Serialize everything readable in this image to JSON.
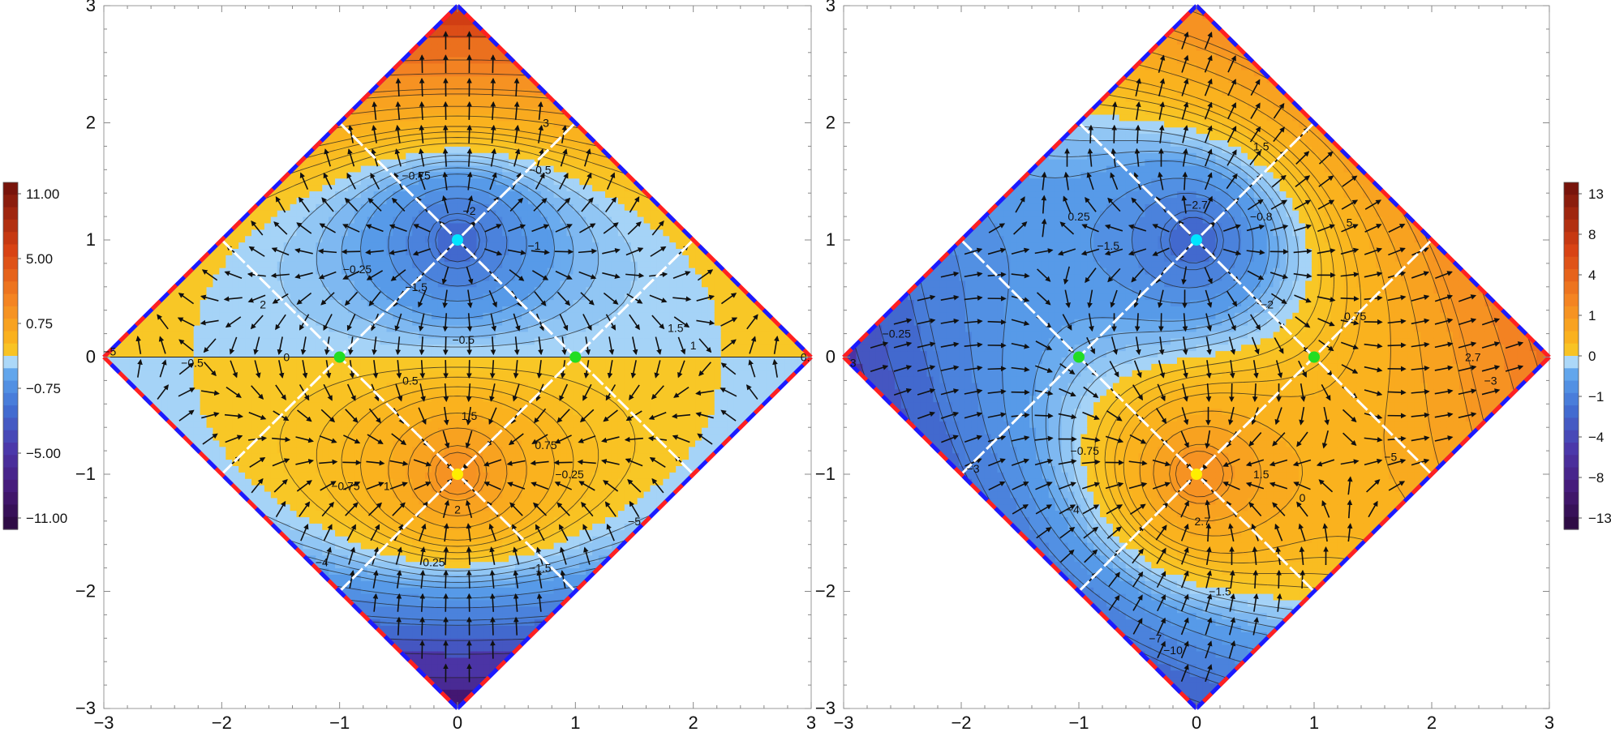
{
  "chart_data": [
    {
      "type": "heatmap",
      "title": "",
      "xlabel": "",
      "ylabel": "",
      "xlim": [
        -3,
        3
      ],
      "ylim": [
        -3,
        3
      ],
      "grid": false,
      "x_ticks": [
        "−3",
        "−2",
        "−1",
        "0",
        "1",
        "2",
        "3"
      ],
      "y_ticks": [
        "3",
        "2",
        "1",
        "0",
        "−1",
        "−2",
        "−3"
      ],
      "x_tick_values": [
        -3,
        -2,
        -1,
        0,
        1,
        2,
        3
      ],
      "y_tick_values": [
        3,
        2,
        1,
        0,
        -1,
        -2,
        -3
      ],
      "domain": "|x| + |y| ≤ 3",
      "field": "y",
      "colorbar": {
        "position": "left",
        "labels": [
          "11.00",
          "5.00",
          "0.75",
          "−0.75",
          "−5.00",
          "−11.00"
        ],
        "label_values": [
          11,
          5,
          0.75,
          -0.75,
          -5,
          -11
        ],
        "min": -13,
        "max": 13
      },
      "points": [
        {
          "x": 0,
          "y": 1,
          "color": "#00e5ff"
        },
        {
          "x": 0,
          "y": -1,
          "color": "#ffee00"
        },
        {
          "x": -1,
          "y": 0,
          "color": "#22dd22"
        },
        {
          "x": 1,
          "y": 0,
          "color": "#22dd22"
        }
      ],
      "contour_labels": [
        {
          "text": "3",
          "x": 0.75,
          "y": 2.0
        },
        {
          "text": "−0.75",
          "x": -0.35,
          "y": 1.55
        },
        {
          "text": "−0.5",
          "x": 0.7,
          "y": 1.6
        },
        {
          "text": "−2",
          "x": 0.1,
          "y": 1.25
        },
        {
          "text": "−1",
          "x": 0.65,
          "y": 0.95
        },
        {
          "text": "−0.25",
          "x": -0.85,
          "y": 0.75
        },
        {
          "text": "−1.5",
          "x": -0.35,
          "y": 0.6
        },
        {
          "text": "2",
          "x": -1.65,
          "y": 0.45
        },
        {
          "text": "1.5",
          "x": 1.85,
          "y": 0.25
        },
        {
          "text": "−0.5",
          "x": 0.05,
          "y": 0.15
        },
        {
          "text": "1",
          "x": 2.0,
          "y": 0.1
        },
        {
          "text": "−5",
          "x": -2.95,
          "y": 0.05
        },
        {
          "text": "−0.5",
          "x": -2.25,
          "y": -0.05
        },
        {
          "text": "0",
          "x": -1.45,
          "y": 0.0
        },
        {
          "text": "0.",
          "x": 2.95,
          "y": 0.0
        },
        {
          "text": "0.5",
          "x": -0.4,
          "y": -0.2
        },
        {
          "text": "1.5",
          "x": 0.1,
          "y": -0.5
        },
        {
          "text": "0.75",
          "x": 0.75,
          "y": -0.75
        },
        {
          "text": "−0.25",
          "x": 0.95,
          "y": -1.0
        },
        {
          "text": "−0.75",
          "x": -0.95,
          "y": -1.1
        },
        {
          "text": "1",
          "x": -0.6,
          "y": -1.1
        },
        {
          "text": "2",
          "x": 0.0,
          "y": -1.3
        },
        {
          "text": "−5",
          "x": 1.5,
          "y": -1.4
        },
        {
          "text": "0.25",
          "x": -0.2,
          "y": -1.75
        },
        {
          "text": "−1.5",
          "x": 0.7,
          "y": -1.8
        },
        {
          "text": "−4",
          "x": -1.15,
          "y": -1.75
        }
      ]
    },
    {
      "type": "heatmap",
      "title": "",
      "xlabel": "",
      "ylabel": "",
      "xlim": [
        -3,
        3
      ],
      "ylim": [
        -3,
        3
      ],
      "grid": false,
      "x_ticks": [
        "−3",
        "−2",
        "−1",
        "0",
        "1",
        "2",
        "3"
      ],
      "y_ticks": [
        "3",
        "2",
        "1",
        "0",
        "−1",
        "−2",
        "−3"
      ],
      "x_tick_values": [
        -3,
        -2,
        -1,
        0,
        1,
        2,
        3
      ],
      "y_tick_values": [
        3,
        2,
        1,
        0,
        -1,
        -2,
        -3
      ],
      "domain": "|x| + |y| ≤ 3",
      "field": "x + y",
      "colorbar": {
        "position": "right",
        "labels": [
          "13",
          "8",
          "4",
          "1",
          "0",
          "−1",
          "−4",
          "−8",
          "−13"
        ],
        "label_values": [
          13,
          8,
          4,
          1,
          0,
          -1,
          -4,
          -8,
          -13
        ],
        "min": -13,
        "max": 13
      },
      "points": [
        {
          "x": 0,
          "y": 1,
          "color": "#00e5ff"
        },
        {
          "x": 0,
          "y": -1,
          "color": "#ffee00"
        },
        {
          "x": -1,
          "y": 0,
          "color": "#22dd22"
        },
        {
          "x": 1,
          "y": 0,
          "color": "#22dd22"
        }
      ],
      "contour_labels": [
        {
          "text": "1.5",
          "x": 0.55,
          "y": 1.8
        },
        {
          "text": "5",
          "x": 1.3,
          "y": 1.15
        },
        {
          "text": "−2.7",
          "x": 0.0,
          "y": 1.3
        },
        {
          "text": "0.25",
          "x": -1.0,
          "y": 1.2
        },
        {
          "text": "−0.8",
          "x": 0.55,
          "y": 1.2
        },
        {
          "text": "−1.5",
          "x": -0.75,
          "y": 0.95
        },
        {
          "text": "−2",
          "x": 0.6,
          "y": 0.45
        },
        {
          "text": "0.75",
          "x": 1.35,
          "y": 0.35
        },
        {
          "text": "−0.25",
          "x": -2.55,
          "y": 0.2
        },
        {
          "text": "2.7",
          "x": 2.35,
          "y": 0.0
        },
        {
          "text": "−3",
          "x": 2.5,
          "y": -0.2
        },
        {
          "text": "−0.75",
          "x": -0.95,
          "y": -0.8
        },
        {
          "text": "−3",
          "x": -1.9,
          "y": -0.95
        },
        {
          "text": "1.5",
          "x": 0.55,
          "y": -1.0
        },
        {
          "text": "0",
          "x": 0.9,
          "y": -1.2
        },
        {
          "text": "−5",
          "x": 1.65,
          "y": -0.85
        },
        {
          "text": "−4",
          "x": -1.05,
          "y": -1.3
        },
        {
          "text": "2.7",
          "x": 0.05,
          "y": -1.4
        },
        {
          "text": "−1.5",
          "x": 0.2,
          "y": -2.0
        },
        {
          "text": "−7",
          "x": -0.35,
          "y": -2.4
        },
        {
          "text": "−10",
          "x": -0.2,
          "y": -2.5
        },
        {
          "text": "3",
          "x": -2.92,
          "y": -0.05
        }
      ]
    }
  ]
}
